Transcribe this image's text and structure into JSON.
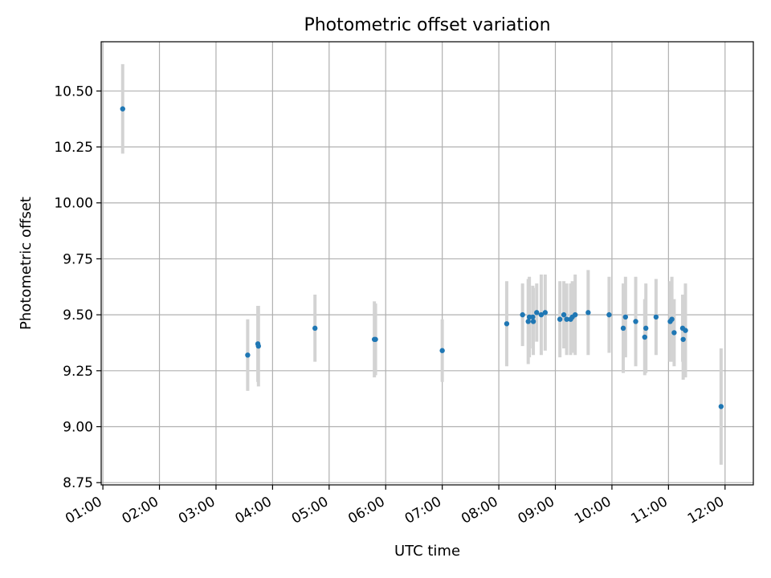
{
  "chart_data": {
    "type": "scatter",
    "title": "Photometric offset variation",
    "xlabel": "UTC time",
    "ylabel": "Photometric offset",
    "x_unit": "hours (UTC)",
    "xlim": [
      0.97,
      12.5
    ],
    "ylim": [
      8.74,
      10.72
    ],
    "xticks": [
      1,
      2,
      3,
      4,
      5,
      6,
      7,
      8,
      9,
      10,
      11,
      12
    ],
    "xtick_labels": [
      "01:00",
      "02:00",
      "03:00",
      "04:00",
      "05:00",
      "06:00",
      "07:00",
      "08:00",
      "09:00",
      "10:00",
      "11:00",
      "12:00"
    ],
    "yticks": [
      8.75,
      9.0,
      9.25,
      9.5,
      9.75,
      10.0,
      10.25,
      10.5
    ],
    "ytick_labels": [
      "8.75",
      "9.00",
      "9.25",
      "9.50",
      "9.75",
      "10.00",
      "10.25",
      "10.50"
    ],
    "grid": true,
    "colors": {
      "points": "#1f77b4",
      "errorbars": "#d3d3d3"
    },
    "points": [
      {
        "x": 1.35,
        "y": 10.42,
        "err": 0.2
      },
      {
        "x": 3.56,
        "y": 9.32,
        "err": 0.16
      },
      {
        "x": 3.74,
        "y": 9.37,
        "err": 0.17
      },
      {
        "x": 3.75,
        "y": 9.36,
        "err": 0.18
      },
      {
        "x": 4.75,
        "y": 9.44,
        "err": 0.15
      },
      {
        "x": 5.8,
        "y": 9.39,
        "err": 0.17
      },
      {
        "x": 5.82,
        "y": 9.39,
        "err": 0.16
      },
      {
        "x": 7.0,
        "y": 9.34,
        "err": 0.14
      },
      {
        "x": 8.14,
        "y": 9.46,
        "err": 0.19
      },
      {
        "x": 8.42,
        "y": 9.5,
        "err": 0.14
      },
      {
        "x": 8.52,
        "y": 9.47,
        "err": 0.19
      },
      {
        "x": 8.54,
        "y": 9.49,
        "err": 0.18
      },
      {
        "x": 8.6,
        "y": 9.49,
        "err": 0.14
      },
      {
        "x": 8.61,
        "y": 9.47,
        "err": 0.15
      },
      {
        "x": 8.67,
        "y": 9.51,
        "err": 0.13
      },
      {
        "x": 8.75,
        "y": 9.5,
        "err": 0.18
      },
      {
        "x": 8.82,
        "y": 9.51,
        "err": 0.17
      },
      {
        "x": 9.08,
        "y": 9.48,
        "err": 0.17
      },
      {
        "x": 9.15,
        "y": 9.5,
        "err": 0.15
      },
      {
        "x": 9.2,
        "y": 9.48,
        "err": 0.16
      },
      {
        "x": 9.27,
        "y": 9.48,
        "err": 0.16
      },
      {
        "x": 9.3,
        "y": 9.49,
        "err": 0.16
      },
      {
        "x": 9.35,
        "y": 9.5,
        "err": 0.18
      },
      {
        "x": 9.58,
        "y": 9.51,
        "err": 0.19
      },
      {
        "x": 9.95,
        "y": 9.5,
        "err": 0.17
      },
      {
        "x": 10.2,
        "y": 9.44,
        "err": 0.2
      },
      {
        "x": 10.24,
        "y": 9.49,
        "err": 0.18
      },
      {
        "x": 10.42,
        "y": 9.47,
        "err": 0.2
      },
      {
        "x": 10.58,
        "y": 9.4,
        "err": 0.17
      },
      {
        "x": 10.6,
        "y": 9.44,
        "err": 0.2
      },
      {
        "x": 10.78,
        "y": 9.49,
        "err": 0.17
      },
      {
        "x": 11.03,
        "y": 9.47,
        "err": 0.18
      },
      {
        "x": 11.06,
        "y": 9.48,
        "err": 0.19
      },
      {
        "x": 11.1,
        "y": 9.42,
        "err": 0.15
      },
      {
        "x": 11.25,
        "y": 9.44,
        "err": 0.15
      },
      {
        "x": 11.26,
        "y": 9.39,
        "err": 0.18
      },
      {
        "x": 11.3,
        "y": 9.43,
        "err": 0.21
      },
      {
        "x": 11.93,
        "y": 9.09,
        "err": 0.26
      }
    ]
  }
}
